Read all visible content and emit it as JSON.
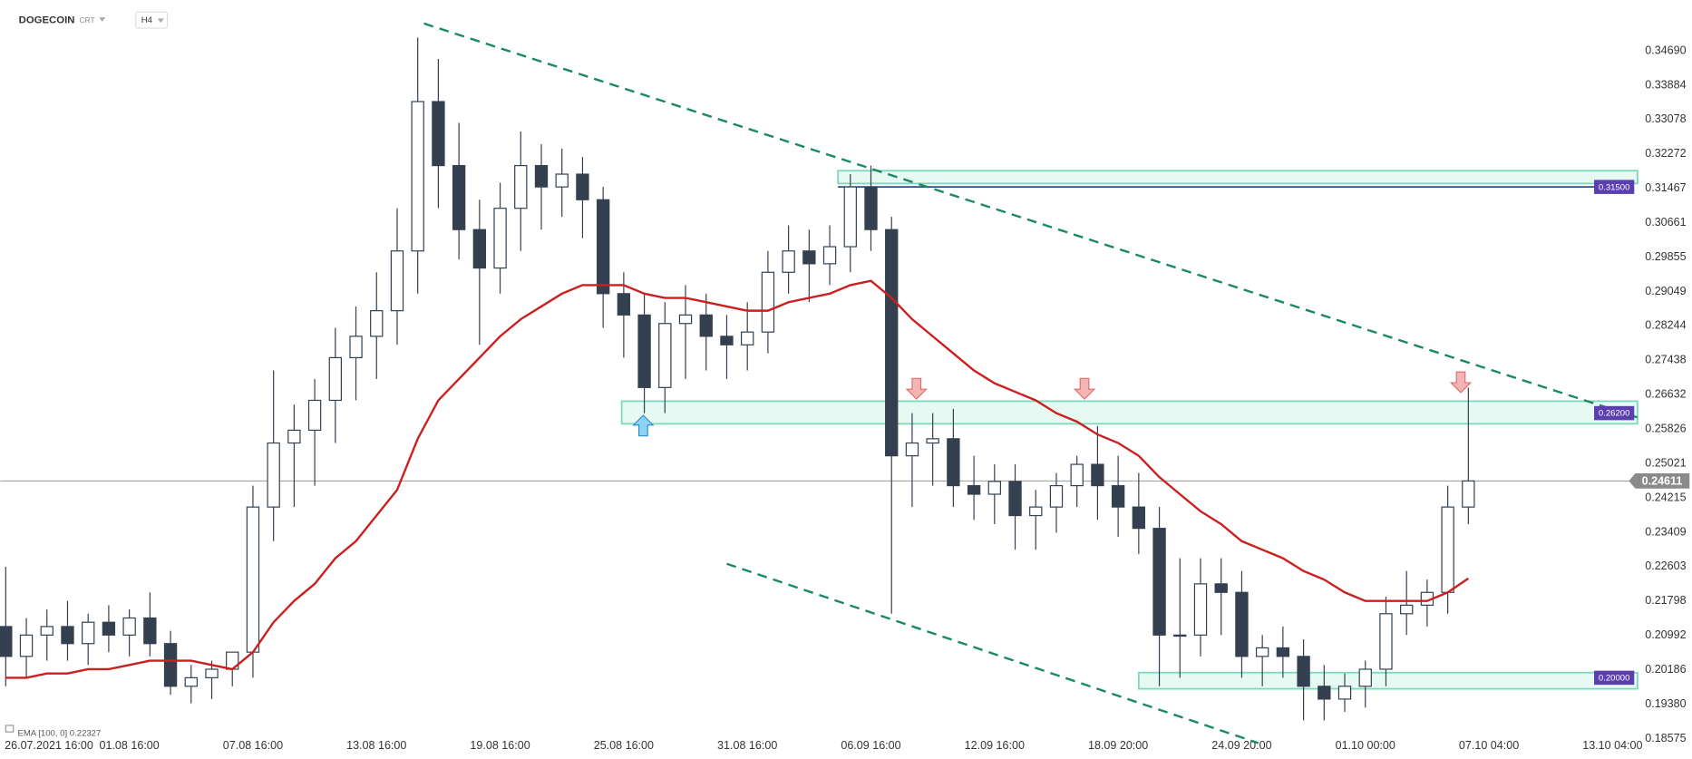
{
  "chart_data": {
    "type": "candlestick",
    "header": {
      "symbol": "DOGECOIN",
      "tag": "CRT",
      "interval": "H4"
    },
    "categories": [
      "26.07.2021 16:00",
      null,
      null,
      null,
      null,
      null,
      "01.08 16:00",
      null,
      null,
      null,
      null,
      null,
      "07.08 16:00",
      null,
      null,
      null,
      null,
      null,
      "13.08 16:00",
      null,
      null,
      null,
      null,
      null,
      "19.08 16:00",
      null,
      null,
      null,
      null,
      null,
      "25.08 16:00",
      null,
      null,
      null,
      null,
      null,
      "31.08 16:00",
      null,
      null,
      null,
      null,
      null,
      "06.09 16:00",
      null,
      null,
      null,
      null,
      null,
      "12.09 16:00",
      null,
      null,
      null,
      null,
      null,
      "18.09 20:00",
      null,
      null,
      null,
      null,
      null,
      "24.09 20:00",
      null,
      null,
      null,
      null,
      null,
      "01.10 00:00",
      null,
      null,
      null,
      null,
      null,
      "07.10 04:00",
      null,
      null,
      null,
      null,
      null,
      "13.10 04:00",
      null
    ],
    "open": [
      0.212,
      0.205,
      0.21,
      0.212,
      0.208,
      0.213,
      0.21,
      0.214,
      0.208,
      0.198,
      0.2,
      0.202,
      0.206,
      0.24,
      0.255,
      0.258,
      0.265,
      0.275,
      0.28,
      0.286,
      0.3,
      0.335,
      0.32,
      0.305,
      0.296,
      0.31,
      0.32,
      0.315,
      0.318,
      0.312,
      0.29,
      0.285,
      0.268,
      0.283,
      0.285,
      0.28,
      0.278,
      0.281,
      0.295,
      0.3,
      0.297,
      0.301,
      0.315,
      0.305,
      0.252,
      0.255,
      0.256,
      0.245,
      0.243,
      0.246,
      0.238,
      0.24,
      0.245,
      0.25,
      0.245,
      0.24,
      0.235,
      0.21,
      0.21,
      0.222,
      0.22,
      0.205,
      0.207,
      0.205,
      0.198,
      0.195,
      0.198,
      0.202,
      0.215,
      0.217,
      0.22,
      0.24,
      null,
      null,
      null,
      null,
      null,
      null,
      null,
      null
    ],
    "high": [
      0.226,
      0.214,
      0.216,
      0.218,
      0.215,
      0.217,
      0.216,
      0.22,
      0.211,
      0.203,
      0.204,
      0.206,
      0.245,
      0.272,
      0.264,
      0.27,
      0.282,
      0.287,
      0.295,
      0.31,
      0.35,
      0.345,
      0.33,
      0.312,
      0.316,
      0.328,
      0.325,
      0.324,
      0.322,
      0.315,
      0.295,
      0.29,
      0.288,
      0.292,
      0.29,
      0.285,
      0.288,
      0.3,
      0.306,
      0.305,
      0.306,
      0.318,
      0.32,
      0.308,
      0.262,
      0.262,
      0.263,
      0.252,
      0.25,
      0.25,
      0.244,
      0.248,
      0.252,
      0.259,
      0.252,
      0.248,
      0.24,
      0.228,
      0.228,
      0.228,
      0.225,
      0.21,
      0.212,
      0.209,
      0.203,
      0.201,
      0.204,
      0.219,
      0.225,
      0.223,
      0.245,
      0.268,
      null,
      null,
      null,
      null,
      null,
      null,
      null,
      null
    ],
    "low": [
      0.198,
      0.2,
      0.204,
      0.204,
      0.203,
      0.206,
      0.205,
      0.205,
      0.196,
      0.194,
      0.195,
      0.198,
      0.2,
      0.232,
      0.24,
      0.245,
      0.255,
      0.265,
      0.27,
      0.278,
      0.29,
      0.31,
      0.298,
      0.278,
      0.29,
      0.3,
      0.305,
      0.308,
      0.303,
      0.282,
      0.275,
      0.262,
      0.262,
      0.27,
      0.272,
      0.27,
      0.272,
      0.276,
      0.29,
      0.288,
      0.292,
      0.295,
      0.3,
      0.215,
      0.24,
      0.245,
      0.24,
      0.237,
      0.236,
      0.23,
      0.23,
      0.234,
      0.24,
      0.237,
      0.233,
      0.229,
      0.198,
      0.2,
      0.205,
      0.21,
      0.2,
      0.198,
      0.2,
      0.19,
      0.19,
      0.192,
      0.193,
      0.198,
      0.21,
      0.212,
      0.215,
      0.236,
      null,
      null,
      null,
      null,
      null,
      null,
      null,
      null
    ],
    "close": [
      0.205,
      0.21,
      0.212,
      0.208,
      0.213,
      0.21,
      0.214,
      0.208,
      0.198,
      0.2,
      0.202,
      0.206,
      0.24,
      0.255,
      0.258,
      0.265,
      0.275,
      0.28,
      0.286,
      0.3,
      0.335,
      0.32,
      0.305,
      0.296,
      0.31,
      0.32,
      0.315,
      0.318,
      0.312,
      0.29,
      0.285,
      0.268,
      0.283,
      0.285,
      0.28,
      0.278,
      0.281,
      0.295,
      0.3,
      0.297,
      0.301,
      0.315,
      0.305,
      0.252,
      0.255,
      0.256,
      0.245,
      0.243,
      0.246,
      0.238,
      0.24,
      0.245,
      0.25,
      0.245,
      0.24,
      0.235,
      0.21,
      0.21,
      0.222,
      0.22,
      0.205,
      0.207,
      0.205,
      0.198,
      0.195,
      0.198,
      0.202,
      0.215,
      0.217,
      0.22,
      0.24,
      0.24611,
      null,
      null,
      null,
      null,
      null,
      null,
      null,
      null
    ],
    "candle_color": "#34404f",
    "ema": {
      "name": "EMA [100, 0]",
      "color": "#cc1f1f",
      "values": [
        0.2,
        0.2,
        0.201,
        0.201,
        0.202,
        0.202,
        0.203,
        0.204,
        0.204,
        0.204,
        0.203,
        0.202,
        0.206,
        0.213,
        0.218,
        0.222,
        0.228,
        0.232,
        0.238,
        0.244,
        0.256,
        0.265,
        0.27,
        0.275,
        0.28,
        0.284,
        0.287,
        0.29,
        0.292,
        0.292,
        0.292,
        0.29,
        0.289,
        0.289,
        0.288,
        0.287,
        0.286,
        0.286,
        0.288,
        0.289,
        0.29,
        0.292,
        0.293,
        0.289,
        0.284,
        0.28,
        0.276,
        0.272,
        0.269,
        0.267,
        0.265,
        0.262,
        0.26,
        0.257,
        0.255,
        0.252,
        0.247,
        0.243,
        0.239,
        0.236,
        0.232,
        0.23,
        0.228,
        0.225,
        0.223,
        0.22,
        0.218,
        0.218,
        0.218,
        0.218,
        0.22,
        0.22327,
        null,
        null,
        null,
        null,
        null,
        null,
        null,
        null
      ]
    },
    "last_price": 0.24611,
    "levels": [
      {
        "value": 0.315,
        "label": "0.31500",
        "zone": [
          0.3158,
          0.3188
        ],
        "start": 40.4,
        "line": true
      },
      {
        "value": 0.262,
        "label": "0.26200",
        "zone": [
          0.2595,
          0.2648
        ],
        "start": 29.9,
        "line": false
      },
      {
        "value": 0.2,
        "label": "0.20000",
        "zone": [
          0.1974,
          0.2012
        ],
        "start": 55,
        "line": false
      }
    ],
    "trendlines": [
      {
        "x": [
          20.3,
          79.2
        ],
        "y": [
          0.3533,
          0.261
        ]
      },
      {
        "x": [
          35,
          60.8
        ],
        "y": [
          0.2267,
          0.1847
        ]
      }
    ],
    "trend_color": "#1a8a5e",
    "ylim": [
      0.1835,
      0.3588
    ],
    "yticks": [
      {
        "value": 0.3469,
        "label": "0.34690"
      },
      0.33884,
      0.33078,
      0.32272,
      0.31467,
      0.30661,
      0.29855,
      0.29049,
      0.28244,
      0.27438,
      0.26632,
      0.25826,
      0.25021,
      0.24215,
      0.23409,
      0.22603,
      0.21798,
      0.20992,
      0.20186,
      {
        "value": 0.1938,
        "label": "0.19380"
      },
      0.18575
    ]
  }
}
